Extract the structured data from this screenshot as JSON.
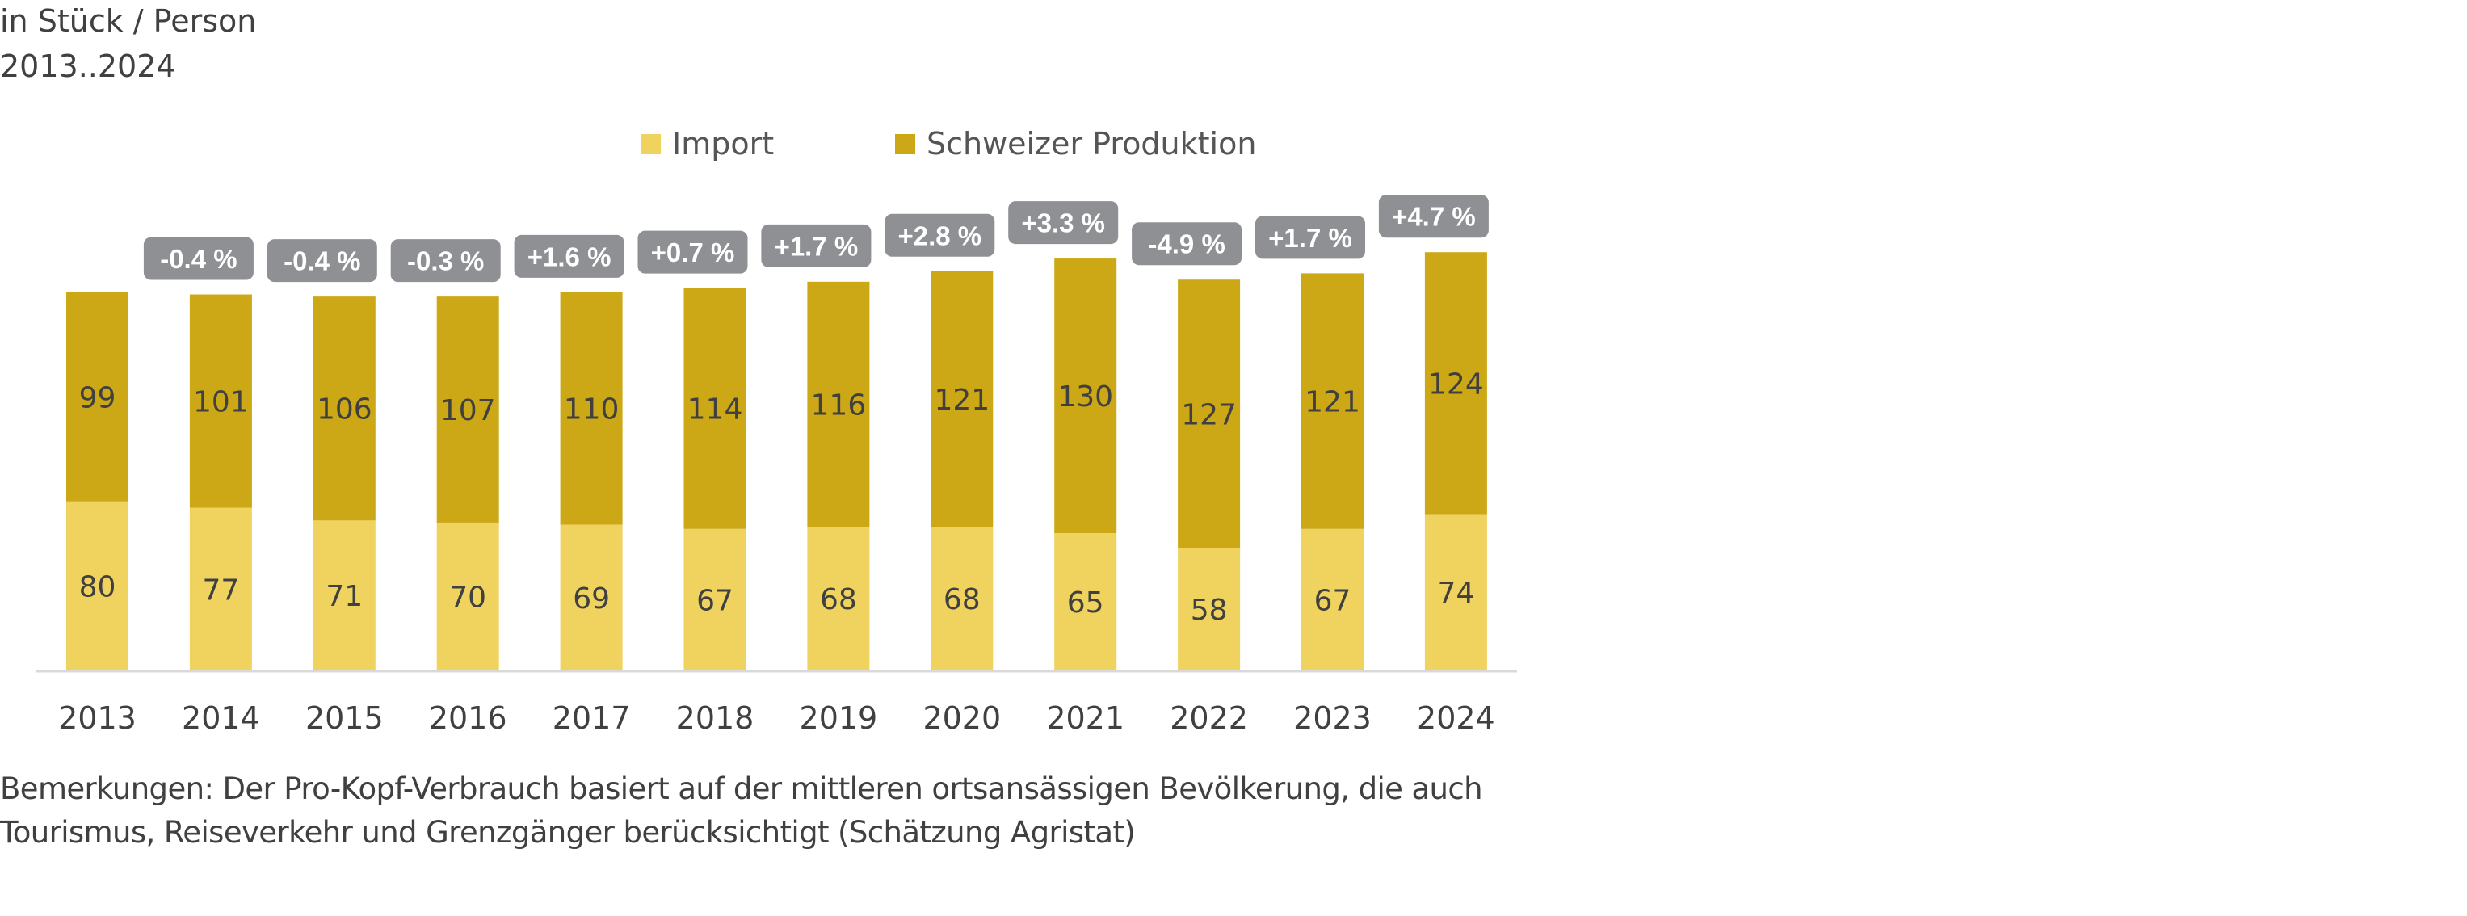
{
  "header": {
    "unit": "in Stück / Person",
    "period": "2013..2024"
  },
  "legend": [
    {
      "label": "Import",
      "color": "#EFD35E"
    },
    {
      "label": "Schweizer Produktion",
      "color": "#CCA816"
    }
  ],
  "colors": {
    "import": "#EFD35E",
    "production": "#CCA816",
    "badge": "#8F9094",
    "badge_text": "#FFFFFF",
    "value_text": "#404040",
    "axis": "#D9D9D9"
  },
  "footnote": {
    "line1": "Bemerkungen: Der Pro-Kopf-Verbrauch basiert auf der mittleren ortsansässigen Bevölkerung, die auch",
    "line2": "Tourismus, Reiseverkehr und Grenzgänger berücksichtigt (Schätzung Agristat)"
  },
  "chart_data": {
    "type": "bar",
    "stacked": true,
    "title": "",
    "subtitle": "in Stück / Person, 2013..2024",
    "xlabel": "",
    "ylabel": "in Stück / Person",
    "ylim": [
      0,
      317
    ],
    "grid": false,
    "legend_position": "top-center",
    "categories": [
      "2013",
      "2014",
      "2015",
      "2016",
      "2017",
      "2018",
      "2019",
      "2020",
      "2021",
      "2022",
      "2023",
      "2024"
    ],
    "series": [
      {
        "name": "Import",
        "values": [
          80,
          77,
          71,
          70,
          69,
          67,
          68,
          68,
          65,
          58,
          67,
          74
        ]
      },
      {
        "name": "Schweizer Produktion",
        "values": [
          99,
          101,
          106,
          107,
          110,
          114,
          116,
          121,
          130,
          127,
          121,
          124
        ]
      }
    ],
    "annotations": [
      null,
      "-0.4 %",
      "-0.4 %",
      "-0.3 %",
      "+1.6 %",
      "+0.7 %",
      "+1.7 %",
      "+2.8 %",
      "+3.3 %",
      "-4.9 %",
      "+1.7 %",
      "+4.7 %"
    ]
  }
}
